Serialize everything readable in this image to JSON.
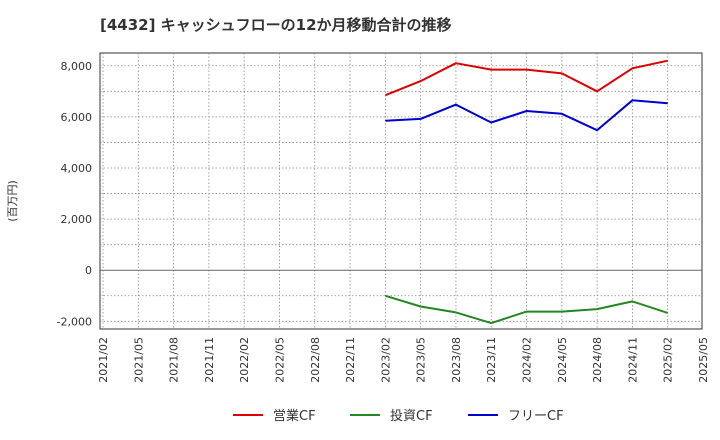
{
  "chart_data": {
    "type": "line",
    "title": "[4432]  キャッシュフローの12か月移動合計の推移",
    "ylabel": "(百万円)",
    "xlabel": "",
    "ylim": [
      -2300,
      8500
    ],
    "y_ticks": [
      -2000,
      0,
      2000,
      4000,
      6000,
      8000
    ],
    "y_tick_labels": [
      "-2,000",
      "0",
      "2,000",
      "4,000",
      "6,000",
      "8,000"
    ],
    "x_tick_labels": [
      "2021/02",
      "2021/05",
      "2021/08",
      "2021/11",
      "2022/02",
      "2022/05",
      "2022/08",
      "2022/11",
      "2023/02",
      "2023/05",
      "2023/08",
      "2023/11",
      "2024/02",
      "2024/05",
      "2024/08",
      "2024/11",
      "2025/02",
      "2025/05"
    ],
    "x": [
      "2023/02",
      "2023/05",
      "2023/08",
      "2023/11",
      "2024/02",
      "2024/05",
      "2024/08",
      "2024/11",
      "2025/02"
    ],
    "series": [
      {
        "name": "営業CF",
        "color": "#dd0000",
        "values": [
          6850,
          7400,
          8100,
          7850,
          7850,
          7700,
          7000,
          7900,
          8200
        ]
      },
      {
        "name": "投資CF",
        "color": "#228822",
        "values": [
          -1000,
          -1420,
          -1650,
          -2070,
          -1620,
          -1620,
          -1520,
          -1220,
          -1670
        ]
      },
      {
        "name": "フリーCF",
        "color": "#0000cc",
        "values": [
          5850,
          5920,
          6480,
          5780,
          6230,
          6120,
          5480,
          6650,
          6530
        ]
      }
    ],
    "grid": true,
    "legend": "bottom"
  }
}
